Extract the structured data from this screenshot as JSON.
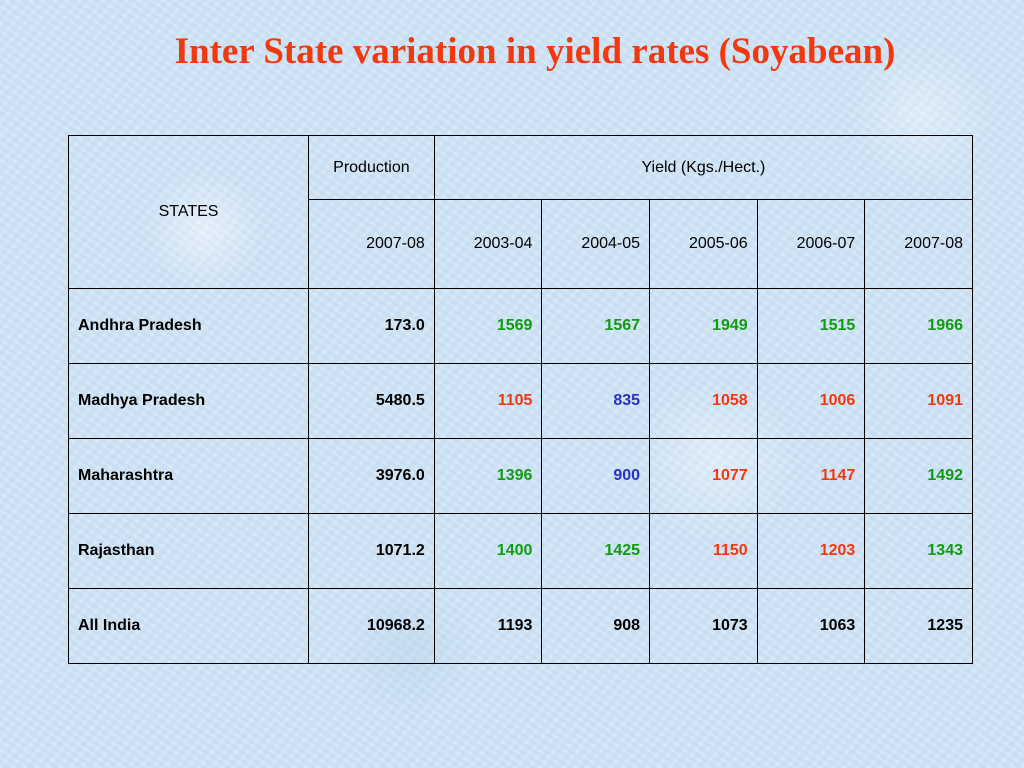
{
  "title": "Inter State variation in yield rates (Soyabean)",
  "colors": {
    "title": "#f2380f",
    "green": "#129b12",
    "red": "#f2380f",
    "blue": "#2a31c7",
    "black": "#000000"
  },
  "table": {
    "states_header": "STATES",
    "production_header": "Production",
    "yield_header": "Yield (Kgs./Hect.)",
    "production_year": "2007-08",
    "yield_years": [
      "2003-04",
      "2004-05",
      "2005-06",
      "2006-07",
      "2007-08"
    ],
    "rows": [
      {
        "state": "Andhra Pradesh",
        "production": "173.0",
        "yields": [
          {
            "value": "1569",
            "color": "green"
          },
          {
            "value": "1567",
            "color": "green"
          },
          {
            "value": "1949",
            "color": "green"
          },
          {
            "value": "1515",
            "color": "green"
          },
          {
            "value": "1966",
            "color": "green"
          }
        ]
      },
      {
        "state": "Madhya Pradesh",
        "production": "5480.5",
        "yields": [
          {
            "value": "1105",
            "color": "red"
          },
          {
            "value": "835",
            "color": "blue"
          },
          {
            "value": "1058",
            "color": "red"
          },
          {
            "value": "1006",
            "color": "red"
          },
          {
            "value": "1091",
            "color": "red"
          }
        ]
      },
      {
        "state": "Maharashtra",
        "production": "3976.0",
        "yields": [
          {
            "value": "1396",
            "color": "green"
          },
          {
            "value": "900",
            "color": "blue"
          },
          {
            "value": "1077",
            "color": "red"
          },
          {
            "value": "1147",
            "color": "red"
          },
          {
            "value": "1492",
            "color": "green"
          }
        ]
      },
      {
        "state": "Rajasthan",
        "production": "1071.2",
        "yields": [
          {
            "value": "1400",
            "color": "green"
          },
          {
            "value": "1425",
            "color": "green"
          },
          {
            "value": "1150",
            "color": "red"
          },
          {
            "value": "1203",
            "color": "red"
          },
          {
            "value": "1343",
            "color": "green"
          }
        ]
      },
      {
        "state": "All India",
        "production": "10968.2",
        "yields": [
          {
            "value": "1193",
            "color": "black"
          },
          {
            "value": "908",
            "color": "black"
          },
          {
            "value": "1073",
            "color": "black"
          },
          {
            "value": "1063",
            "color": "black"
          },
          {
            "value": "1235",
            "color": "black"
          }
        ]
      }
    ]
  }
}
